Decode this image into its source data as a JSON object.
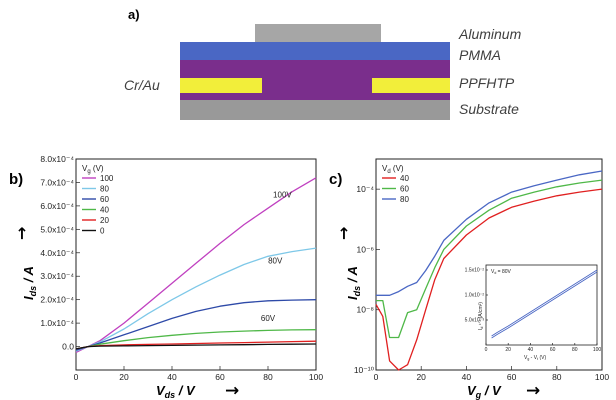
{
  "panel_a": {
    "label": "a)",
    "layers": [
      {
        "name": "Aluminum",
        "color": "#a6a6a6"
      },
      {
        "name": "PMMA",
        "color": "#4a67c4"
      },
      {
        "name": "PPFHTP",
        "color": "#7a2e8c"
      },
      {
        "name": "Substrate",
        "color": "#999999"
      }
    ],
    "electrode_label": "Cr/Au",
    "electrode_color": "#f2ee3a"
  },
  "panel_b": {
    "label": "b)"
  },
  "panel_c": {
    "label": "c)"
  },
  "chart_data": [
    {
      "type": "line",
      "xlabel": "V_ds / V",
      "ylabel": "I_ds / A",
      "xlim": [
        0,
        100
      ],
      "ylim": [
        -0.0001,
        0.0008
      ],
      "xticks": [
        "0",
        "20",
        "40",
        "60",
        "80",
        "100"
      ],
      "yticks": [
        {
          "v": 0.0,
          "t": "0.0"
        },
        {
          "v": 0.0001,
          "t": "1.0x10⁻⁴"
        },
        {
          "v": 0.0002,
          "t": "2.0x10⁻⁴"
        },
        {
          "v": 0.0003,
          "t": "3.0x10⁻⁴"
        },
        {
          "v": 0.0004,
          "t": "4.0x10⁻⁴"
        },
        {
          "v": 0.0005,
          "t": "5.0x10⁻⁴"
        },
        {
          "v": 0.0006,
          "t": "6.0x10⁻⁴"
        },
        {
          "v": 0.0007,
          "t": "7.0x10⁻⁴"
        },
        {
          "v": 0.0008,
          "t": "8.0x10⁻⁴"
        }
      ],
      "legend_title": "V_g (V)",
      "legend_position": "top-left",
      "series": [
        {
          "name": "100",
          "color": "#c040c0",
          "label": "100V",
          "label_at": [
            86,
            0.000635
          ],
          "x": [
            0,
            5,
            10,
            20,
            30,
            40,
            50,
            60,
            70,
            80,
            90,
            100
          ],
          "y": [
            -2.5e-05,
            0,
            2.5e-05,
            0.0001,
            0.000185,
            0.00027,
            0.000355,
            0.00044,
            0.00052,
            0.00059,
            0.00066,
            0.00072
          ]
        },
        {
          "name": "80",
          "color": "#7ec8e8",
          "label": "80V",
          "label_at": [
            83,
            0.000355
          ],
          "x": [
            0,
            5,
            10,
            20,
            30,
            40,
            50,
            60,
            70,
            80,
            90,
            100
          ],
          "y": [
            -2e-05,
            0,
            2e-05,
            7.5e-05,
            0.00014,
            0.0002,
            0.000255,
            0.000305,
            0.00035,
            0.000385,
            0.000405,
            0.00042
          ]
        },
        {
          "name": "60",
          "color": "#2e4aa8",
          "label": "60V",
          "label_at": [
            80,
            0.00011
          ],
          "x": [
            0,
            5,
            10,
            20,
            30,
            40,
            50,
            60,
            70,
            80,
            90,
            100
          ],
          "y": [
            -1.5e-05,
            0,
            1.5e-05,
            5e-05,
            8.5e-05,
            0.00012,
            0.00015,
            0.000172,
            0.000187,
            0.000195,
            0.000198,
            0.0002
          ]
        },
        {
          "name": "40",
          "color": "#4fb848",
          "x": [
            0,
            5,
            10,
            20,
            30,
            40,
            50,
            60,
            70,
            80,
            90,
            100
          ],
          "y": [
            -1e-05,
            0,
            1e-05,
            2.5e-05,
            3.8e-05,
            4.8e-05,
            5.6e-05,
            6.2e-05,
            6.6e-05,
            6.9e-05,
            7.1e-05,
            7.2e-05
          ]
        },
        {
          "name": "20",
          "color": "#e02020",
          "x": [
            0,
            5,
            10,
            20,
            30,
            40,
            50,
            60,
            70,
            80,
            90,
            100
          ],
          "y": [
            -1e-05,
            0,
            4e-06,
            7e-06,
            9e-06,
            1.1e-05,
            1.3e-05,
            1.5e-05,
            1.7e-05,
            1.9e-05,
            2.1e-05,
            2.3e-05
          ]
        },
        {
          "name": "0",
          "color": "#111111",
          "x": [
            0,
            5,
            10,
            20,
            30,
            40,
            50,
            60,
            70,
            80,
            90,
            100
          ],
          "y": [
            -1e-05,
            0,
            2e-06,
            3e-06,
            4e-06,
            5e-06,
            6e-06,
            7e-06,
            8e-06,
            9e-06,
            1e-05,
            1.1e-05
          ]
        }
      ]
    },
    {
      "type": "line",
      "xlabel": "V_g / V",
      "ylabel": "I_ds / A",
      "xlim": [
        0,
        100
      ],
      "ylim": [
        1e-10,
        0.001
      ],
      "yscale": "log",
      "xticks": [
        "0",
        "20",
        "40",
        "60",
        "80",
        "100"
      ],
      "yticks": [
        {
          "v": 1e-10,
          "t": "10⁻¹⁰"
        },
        {
          "v": 1e-08,
          "t": "10⁻⁸"
        },
        {
          "v": 1e-06,
          "t": "10⁻⁶"
        },
        {
          "v": 0.0001,
          "t": "10⁻⁴"
        }
      ],
      "legend_title": "V_d (V)",
      "legend_position": "top-left",
      "series": [
        {
          "name": "40",
          "color": "#e02020",
          "x": [
            0,
            3,
            6,
            10,
            14,
            18,
            22,
            26,
            30,
            40,
            50,
            60,
            70,
            80,
            90,
            100
          ],
          "y": [
            1.5e-08,
            6e-09,
            2e-10,
            1e-10,
            1.5e-10,
            1e-09,
            1e-08,
            1e-07,
            5e-07,
            3e-06,
            1.1e-05,
            2.5e-05,
            4e-05,
            6e-05,
            8e-05,
            0.0001
          ]
        },
        {
          "name": "60",
          "color": "#4fb848",
          "x": [
            0,
            3,
            6,
            10,
            14,
            18,
            22,
            26,
            30,
            40,
            50,
            60,
            70,
            80,
            90,
            100
          ],
          "y": [
            2e-08,
            2e-08,
            1.2e-09,
            1.2e-09,
            8e-09,
            1e-08,
            5e-08,
            2.5e-07,
            1e-06,
            6e-06,
            2e-05,
            5e-05,
            8e-05,
            0.00012,
            0.00016,
            0.0002
          ]
        },
        {
          "name": "80",
          "color": "#4a67c4",
          "x": [
            0,
            3,
            6,
            10,
            14,
            18,
            22,
            26,
            30,
            40,
            50,
            60,
            70,
            80,
            90,
            100
          ],
          "y": [
            3e-08,
            3e-08,
            3e-08,
            4e-08,
            6e-08,
            8e-08,
            2e-07,
            6e-07,
            2e-06,
            1e-05,
            3.5e-05,
            8e-05,
            0.00013,
            0.0002,
            0.0003,
            0.0004
          ]
        }
      ]
    },
    {
      "type": "line",
      "inset": true,
      "xlabel": "V_g - V_t (V)",
      "ylabel": "I_d ^1/2 (A/cm²)",
      "annotation": "V_d = 80V",
      "xlim": [
        0,
        100
      ],
      "ylim": [
        0,
        0.016
      ],
      "xticks": [
        "0",
        "20",
        "40",
        "60",
        "80",
        "100"
      ],
      "yticks": [
        {
          "v": 0.005,
          "t": "5.0x10⁻³"
        },
        {
          "v": 0.01,
          "t": "1.0x10⁻²"
        },
        {
          "v": 0.015,
          "t": "1.5x10⁻²"
        }
      ],
      "series": [
        {
          "color": "#4a67c4",
          "x": [
            5,
            10,
            20,
            30,
            40,
            50,
            60,
            70,
            80,
            90,
            100
          ],
          "y": [
            0.0018,
            0.0025,
            0.0038,
            0.0052,
            0.0066,
            0.008,
            0.0094,
            0.0108,
            0.0122,
            0.0136,
            0.015
          ]
        },
        {
          "color": "#4a67c4",
          "x": [
            5,
            10,
            20,
            30,
            40,
            50,
            60,
            70,
            80,
            90,
            100
          ],
          "y": [
            0.0014,
            0.0021,
            0.0034,
            0.0048,
            0.0062,
            0.0076,
            0.009,
            0.0104,
            0.0118,
            0.0132,
            0.0146
          ]
        }
      ]
    }
  ]
}
